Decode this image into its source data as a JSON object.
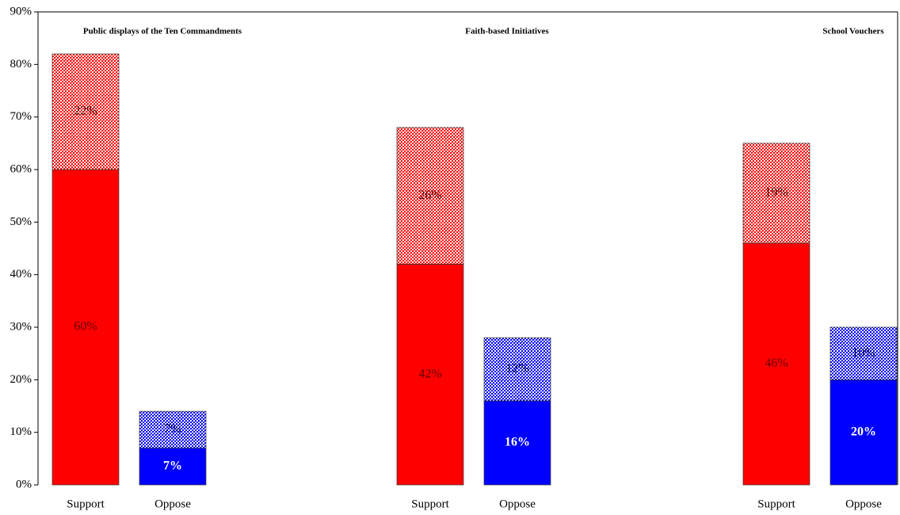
{
  "chart_data": {
    "type": "stacked_bar",
    "ylim": [
      0,
      90
    ],
    "yticks": [
      {
        "value": 0,
        "label": "0%"
      },
      {
        "value": 10,
        "label": "10%"
      },
      {
        "value": 20,
        "label": "20%"
      },
      {
        "value": 30,
        "label": "30%"
      },
      {
        "value": 40,
        "label": "40%"
      },
      {
        "value": 50,
        "label": "50%"
      },
      {
        "value": 60,
        "label": "60%"
      },
      {
        "value": 70,
        "label": "70%"
      },
      {
        "value": 80,
        "label": "80%"
      },
      {
        "value": 90,
        "label": "90%"
      }
    ],
    "segment_styles": [
      "solid",
      "dotted"
    ],
    "groups": [
      {
        "title": "Public displays of the Ten Commandments",
        "bars": [
          {
            "label": "Support",
            "color": "#ff0000",
            "values": [
              60,
              22
            ],
            "value_labels": [
              "60%",
              "22%"
            ],
            "label_colors": [
              "#600000",
              "#400000"
            ]
          },
          {
            "label": "Oppose",
            "color": "#0000ff",
            "values": [
              7,
              7
            ],
            "value_labels": [
              "7%",
              "7%"
            ],
            "label_colors": [
              "#ffffff",
              "#000040"
            ]
          }
        ]
      },
      {
        "title": "Faith-based Initiatives",
        "bars": [
          {
            "label": "Support",
            "color": "#ff0000",
            "values": [
              42,
              26
            ],
            "value_labels": [
              "42%",
              "26%"
            ],
            "label_colors": [
              "#600000",
              "#400000"
            ]
          },
          {
            "label": "Oppose",
            "color": "#0000ff",
            "values": [
              16,
              12
            ],
            "value_labels": [
              "16%",
              "12%"
            ],
            "label_colors": [
              "#ffffff",
              "#000040"
            ]
          }
        ]
      },
      {
        "title": "School Vouchers",
        "bars": [
          {
            "label": "Support",
            "color": "#ff0000",
            "values": [
              46,
              19
            ],
            "value_labels": [
              "46%",
              "19%"
            ],
            "label_colors": [
              "#600000",
              "#400000"
            ]
          },
          {
            "label": "Oppose",
            "color": "#0000ff",
            "values": [
              20,
              10
            ],
            "value_labels": [
              "20%",
              "10%"
            ],
            "label_colors": [
              "#ffffff",
              "#000040"
            ]
          }
        ]
      }
    ]
  }
}
